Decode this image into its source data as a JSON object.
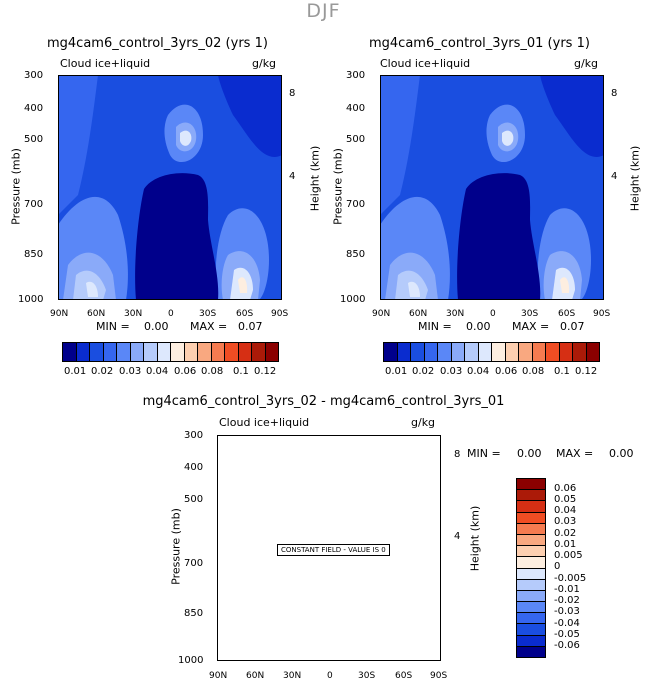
{
  "title": "DJF",
  "colors": {
    "palette": [
      "#00008b",
      "#0014b5",
      "#0a2ccf",
      "#1a4ee0",
      "#3566ef",
      "#5a87f7",
      "#8aaaf9",
      "#b5cbfb",
      "#dde8fd",
      "#fdeee0",
      "#fdcfb0",
      "#f9a880",
      "#f57b50",
      "#f04d23",
      "#d62f14",
      "#ab1a08",
      "#8b0000"
    ]
  },
  "chart_data": [
    {
      "type": "contour",
      "title": "mg4cam6_control_3yrs_02 (yrs 1)",
      "variable": "Cloud ice+liquid",
      "units": "g/kg",
      "xlabel": "",
      "ylabel": "Pressure (mb)",
      "y2label": "Height (km)",
      "x_ticks": [
        "90N",
        "60N",
        "30N",
        "0",
        "30S",
        "60S",
        "90S"
      ],
      "y_ticks": [
        "300",
        "400",
        "500",
        "700",
        "850",
        "1000"
      ],
      "y2_ticks": [
        "8",
        "4"
      ],
      "min_label": "MIN =",
      "min_value": "0.00",
      "max_label": "MAX =",
      "max_value": "0.07",
      "colorbar_labels": [
        "0.01",
        "0.02",
        "0.03",
        "0.04",
        "0.06",
        "0.08",
        "0.1",
        "0.12"
      ]
    },
    {
      "type": "contour",
      "title": "mg4cam6_control_3yrs_01 (yrs 1)",
      "variable": "Cloud ice+liquid",
      "units": "g/kg",
      "xlabel": "",
      "ylabel": "Pressure (mb)",
      "y2label": "Height (km)",
      "x_ticks": [
        "90N",
        "60N",
        "30N",
        "0",
        "30S",
        "60S",
        "90S"
      ],
      "y_ticks": [
        "300",
        "400",
        "500",
        "700",
        "850",
        "1000"
      ],
      "y2_ticks": [
        "8",
        "4"
      ],
      "min_label": "MIN =",
      "min_value": "0.00",
      "max_label": "MAX =",
      "max_value": "0.07",
      "colorbar_labels": [
        "0.01",
        "0.02",
        "0.03",
        "0.04",
        "0.06",
        "0.08",
        "0.1",
        "0.12"
      ]
    },
    {
      "type": "contour",
      "title": "mg4cam6_control_3yrs_02 - mg4cam6_control_3yrs_01",
      "variable": "Cloud ice+liquid",
      "units": "g/kg",
      "ylabel": "Pressure (mb)",
      "y2label": "Height (km)",
      "x_ticks": [
        "90N",
        "60N",
        "30N",
        "0",
        "30S",
        "60S",
        "90S"
      ],
      "y_ticks": [
        "300",
        "400",
        "500",
        "700",
        "850",
        "1000"
      ],
      "y2_ticks": [
        "8",
        "4"
      ],
      "min_label": "MIN =",
      "min_value": "0.00",
      "max_label": "MAX =",
      "max_value": "0.00",
      "annotation": "CONSTANT FIELD - VALUE IS 0",
      "colorbar_labels": [
        "0.06",
        "0.05",
        "0.04",
        "0.03",
        "0.02",
        "0.01",
        "0.005",
        "0",
        "-0.005",
        "-0.01",
        "-0.02",
        "-0.03",
        "-0.04",
        "-0.05",
        "-0.06"
      ]
    }
  ]
}
